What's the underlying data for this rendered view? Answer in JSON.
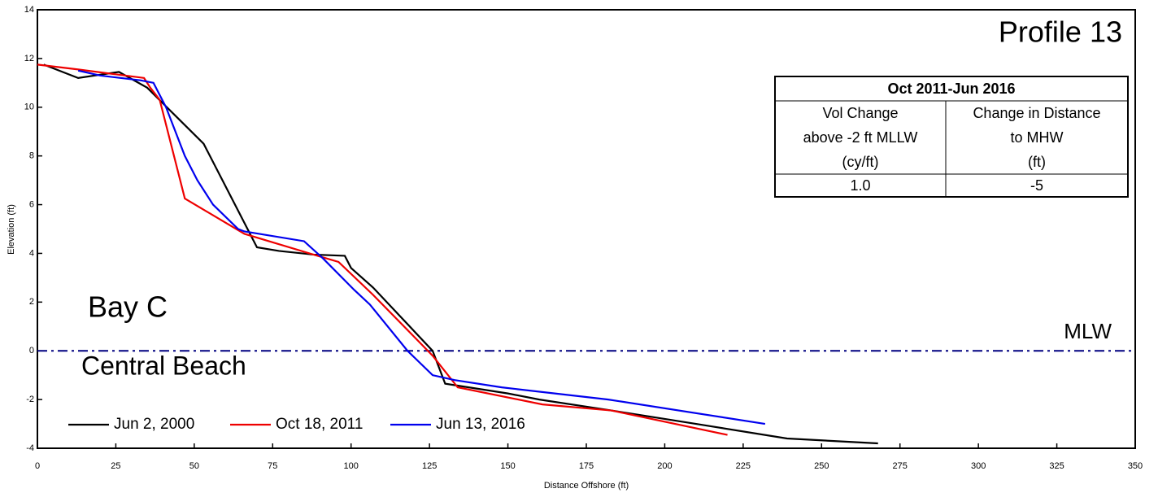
{
  "chart_data": {
    "type": "line",
    "xlabel": "Distance Offshore (ft)",
    "ylabel": "Elevation (ft)",
    "xlim": [
      0,
      350
    ],
    "ylim": [
      -4,
      14
    ],
    "xticks": [
      0,
      25,
      50,
      75,
      100,
      125,
      150,
      175,
      200,
      225,
      250,
      275,
      300,
      325,
      350
    ],
    "yticks": [
      -4,
      -2,
      0,
      2,
      4,
      6,
      8,
      10,
      12,
      14
    ],
    "series": [
      {
        "name": "Jun 2, 2000",
        "color": "#000000",
        "x": [
          2,
          13,
          26,
          35,
          53,
          70,
          77,
          88,
          98,
          100,
          107,
          126,
          130,
          135,
          150,
          160,
          183,
          210,
          239,
          268
        ],
        "values": [
          11.75,
          11.2,
          11.45,
          10.8,
          8.5,
          4.25,
          4.1,
          3.95,
          3.9,
          3.4,
          2.6,
          0,
          -1.35,
          -1.45,
          -1.75,
          -2,
          -2.45,
          -3,
          -3.6,
          -3.8
        ]
      },
      {
        "name": "Oct 18, 2011",
        "color": "#ee0000",
        "x": [
          0,
          13,
          34,
          36,
          39,
          47,
          66,
          88,
          96,
          107,
          126,
          134,
          161,
          183,
          220
        ],
        "values": [
          11.75,
          11.55,
          11.2,
          10.8,
          10.3,
          6.25,
          4.8,
          3.95,
          3.65,
          2.3,
          -0.2,
          -1.5,
          -2.2,
          -2.45,
          -3.45
        ]
      },
      {
        "name": "Jun 13, 2016",
        "color": "#0000ee",
        "x": [
          13,
          20,
          33,
          37,
          41,
          47,
          51,
          56,
          64,
          66,
          85,
          91,
          101,
          106,
          118,
          126,
          133,
          148,
          182,
          232
        ],
        "values": [
          11.5,
          11.3,
          11.1,
          11,
          10,
          8,
          7,
          6,
          5,
          4.9,
          4.5,
          3.8,
          2.5,
          1.9,
          0,
          -1,
          -1.2,
          -1.5,
          -2,
          -3
        ]
      }
    ],
    "reference_line": {
      "label": "MLW",
      "value": 0,
      "color": "#000080"
    },
    "profile_label": "Profile 13",
    "bay_label": "Bay C",
    "beach_label": "Central Beach",
    "table": {
      "title": "Oct 2011-Jun 2016",
      "rows": [
        [
          "Vol Change",
          "Change in Distance"
        ],
        [
          "above -2 ft MLLW",
          "to MHW"
        ],
        [
          "(cy/ft)",
          "(ft)"
        ],
        [
          "1.0",
          "-5"
        ]
      ]
    }
  }
}
